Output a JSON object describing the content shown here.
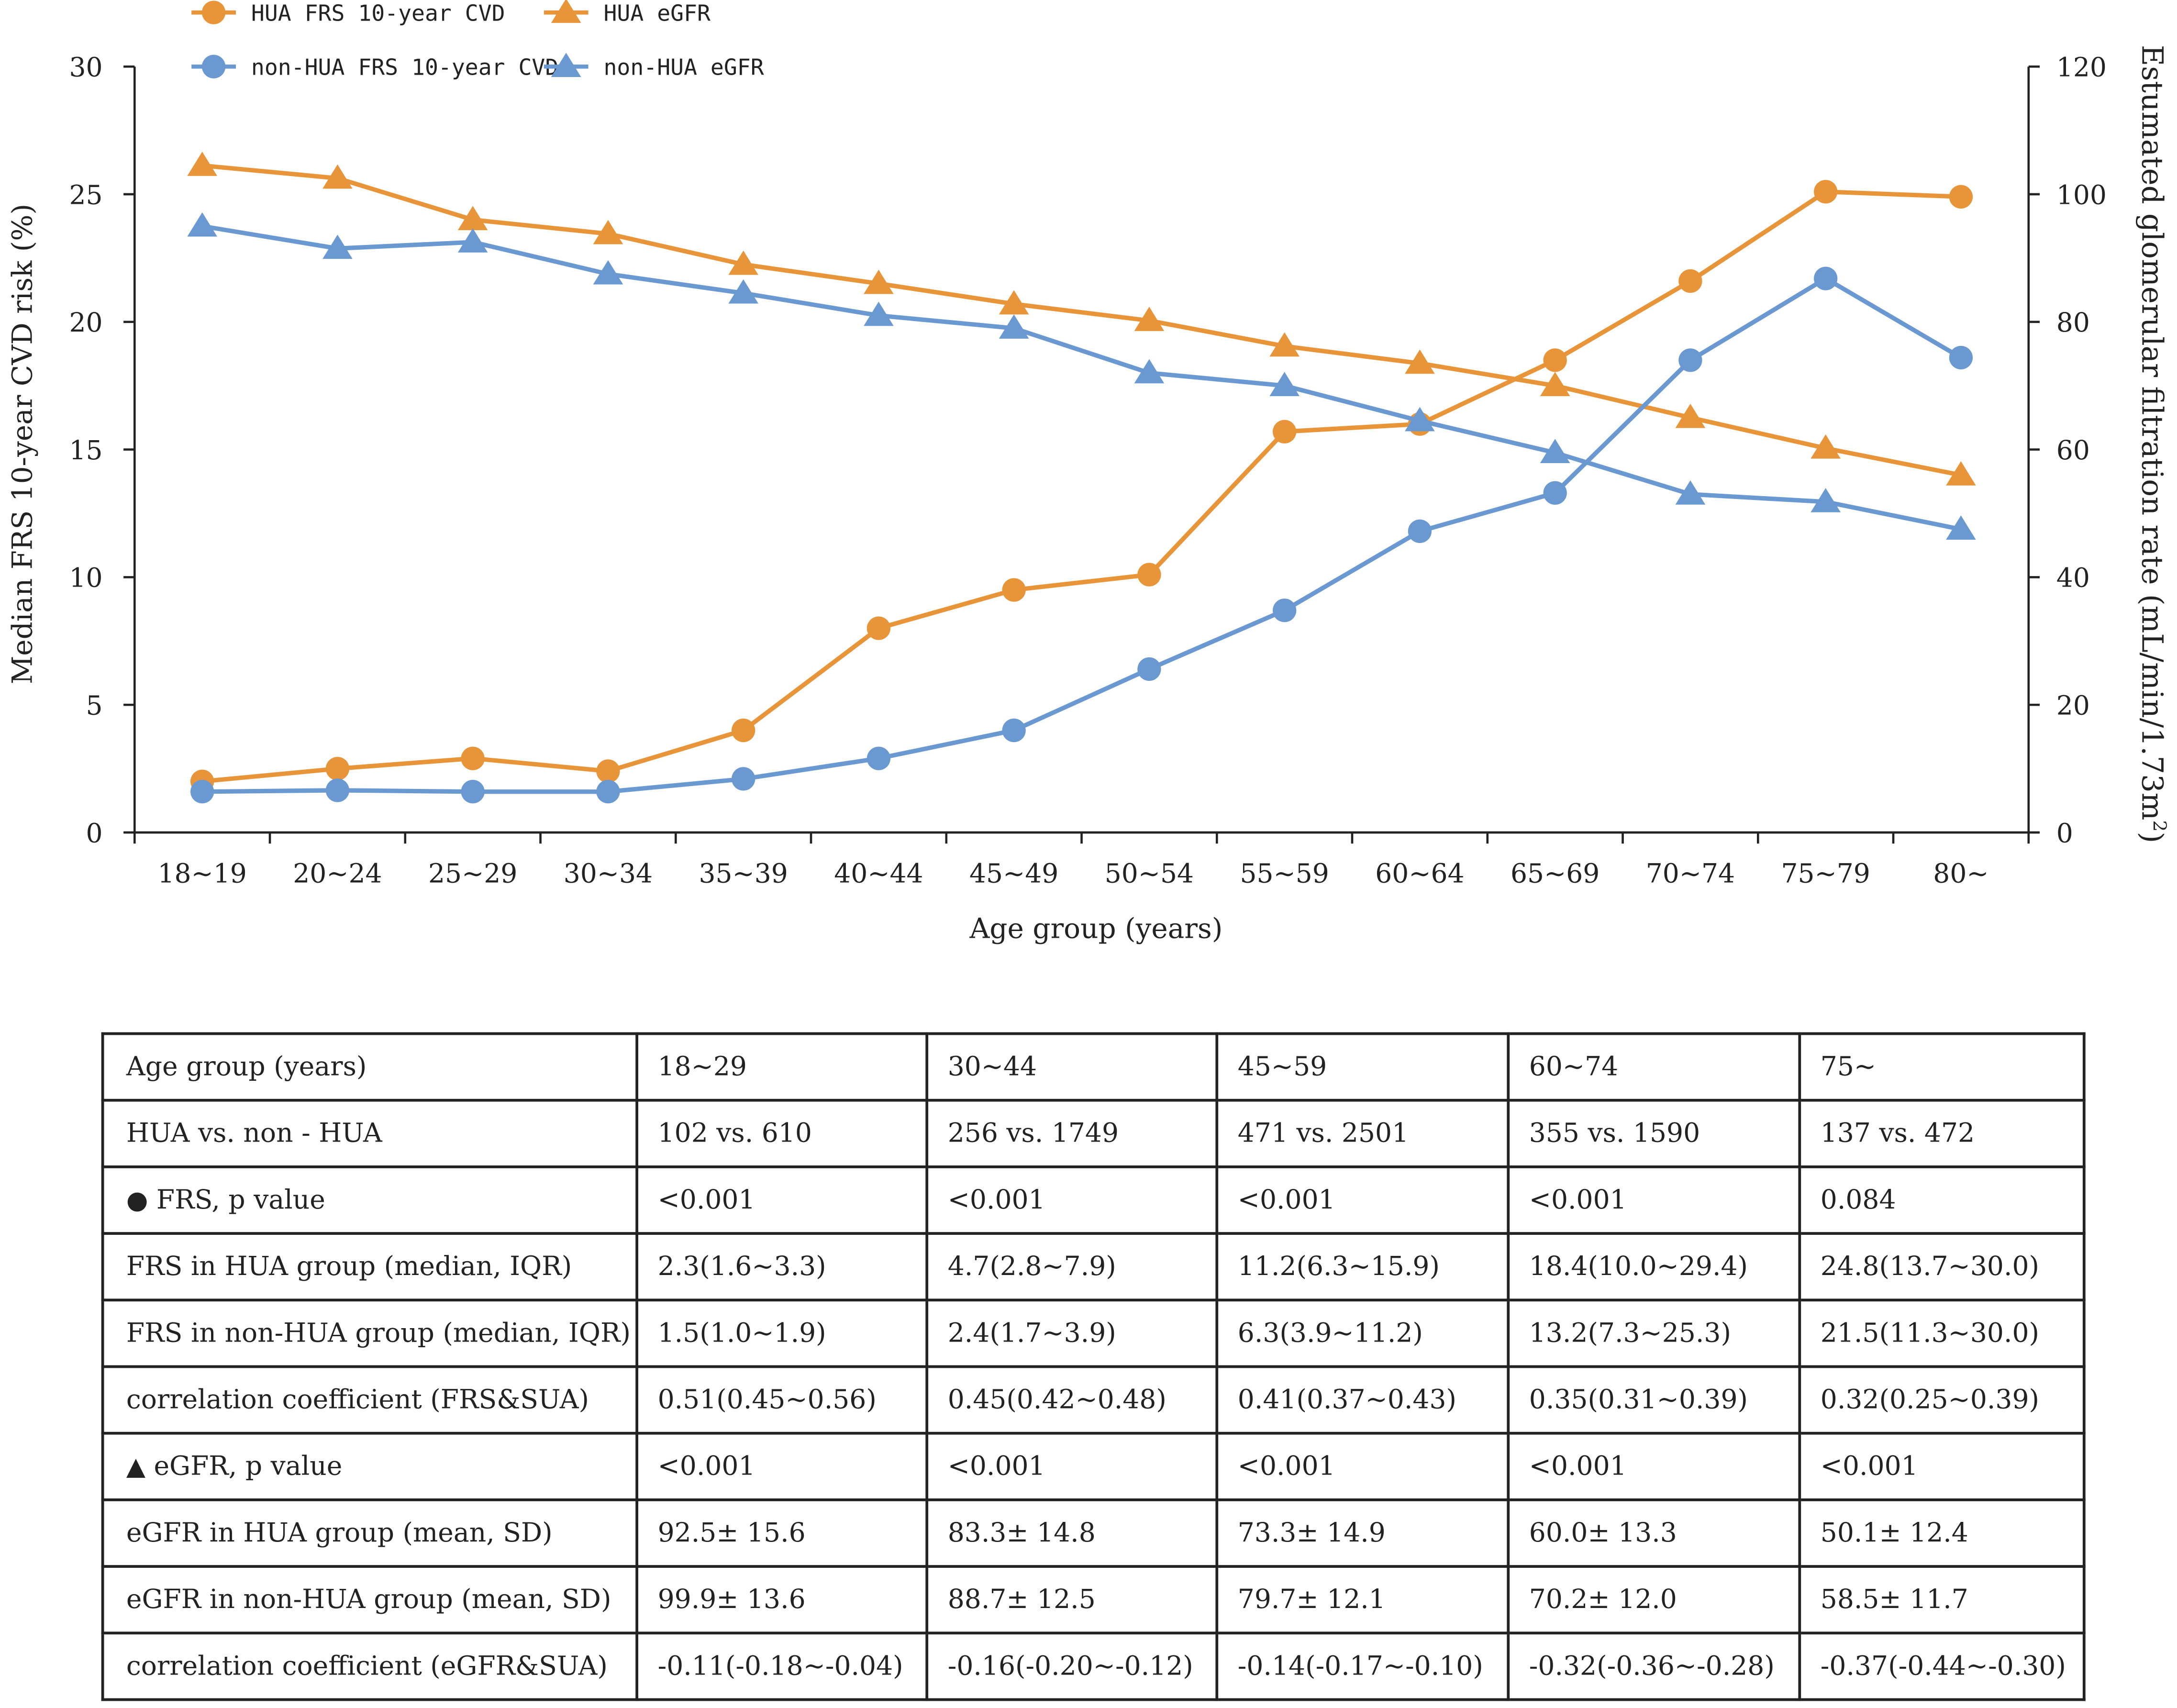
{
  "colors": {
    "hua": "#E8953A",
    "non_hua": "#6A98D0",
    "axis": "#222222"
  },
  "chart_data": {
    "type": "line",
    "categories": [
      "18~19",
      "20~24",
      "25~29",
      "30~34",
      "35~39",
      "40~44",
      "45~49",
      "50~54",
      "55~59",
      "60~64",
      "65~69",
      "70~74",
      "75~79",
      "80~"
    ],
    "xlabel": "Age group (years)",
    "ylabel_left": "Median FRS 10-year CVD risk  (%)",
    "ylabel_right": "Estumated glomerular filtration rate (mL/min/1.73m",
    "ylabel_right_sup": "2",
    "ylim_left": [
      0,
      30
    ],
    "ylim_right": [
      0,
      120
    ],
    "yticks_left": [
      0,
      5,
      10,
      15,
      20,
      25,
      30
    ],
    "yticks_right": [
      0,
      20,
      40,
      60,
      80,
      100,
      120
    ],
    "series": [
      {
        "name": "HUA FRS 10-year CVD",
        "axis": "left",
        "marker": "circle",
        "color": "#E8953A",
        "values": [
          2.0,
          2.5,
          2.9,
          2.4,
          4.0,
          8.0,
          9.5,
          10.1,
          15.7,
          16.0,
          18.5,
          21.6,
          25.1,
          24.9
        ]
      },
      {
        "name": "HUA eGFR",
        "axis": "right",
        "marker": "triangle",
        "color": "#E8953A",
        "values": [
          104.5,
          102.5,
          96.0,
          93.8,
          89.0,
          86.0,
          82.8,
          80.2,
          76.2,
          73.5,
          70.0,
          65.0,
          60.2,
          56.0
        ]
      },
      {
        "name": "non-HUA FRS 10-year CVD",
        "axis": "left",
        "marker": "circle",
        "color": "#6A98D0",
        "values": [
          1.6,
          1.65,
          1.6,
          1.6,
          2.1,
          2.9,
          4.0,
          6.4,
          8.7,
          11.8,
          13.3,
          18.5,
          21.7,
          18.6
        ]
      },
      {
        "name": "non-HUA eGFR",
        "axis": "right",
        "marker": "triangle",
        "color": "#6A98D0",
        "values": [
          95.0,
          91.5,
          92.5,
          87.5,
          84.5,
          81.0,
          79.0,
          72.0,
          70.0,
          64.5,
          59.5,
          53.0,
          51.8,
          47.5
        ]
      }
    ]
  },
  "table": {
    "rows": [
      {
        "label": "Age group (years)",
        "marker": "",
        "cells": [
          "18~29",
          "30~44",
          "45~59",
          "60~74",
          "75~"
        ]
      },
      {
        "label": "HUA vs. non - HUA",
        "marker": "",
        "cells": [
          "102 vs. 610",
          "256 vs. 1749",
          "471 vs. 2501",
          "355 vs. 1590",
          "137 vs. 472"
        ]
      },
      {
        "label": "FRS, p value",
        "marker": "●",
        "cells": [
          "<0.001",
          "<0.001",
          "<0.001",
          "<0.001",
          "0.084"
        ]
      },
      {
        "label": "FRS in HUA group (median, IQR)",
        "marker": "",
        "cells": [
          "2.3(1.6~3.3)",
          "4.7(2.8~7.9)",
          "11.2(6.3~15.9)",
          "18.4(10.0~29.4)",
          "24.8(13.7~30.0)"
        ]
      },
      {
        "label": "FRS in non-HUA group (median, IQR)",
        "marker": "",
        "cells": [
          "1.5(1.0~1.9)",
          "2.4(1.7~3.9)",
          "6.3(3.9~11.2)",
          "13.2(7.3~25.3)",
          "21.5(11.3~30.0)"
        ]
      },
      {
        "label": "correlation coefficient (FRS&SUA)",
        "marker": "",
        "cells": [
          "0.51(0.45~0.56)",
          "0.45(0.42~0.48)",
          "0.41(0.37~0.43)",
          "0.35(0.31~0.39)",
          "0.32(0.25~0.39)"
        ]
      },
      {
        "label": "eGFR, p value",
        "marker": "▲",
        "cells": [
          "<0.001",
          "<0.001",
          "<0.001",
          "<0.001",
          "<0.001"
        ]
      },
      {
        "label": "eGFR in HUA group (mean, SD)",
        "marker": "",
        "cells": [
          "92.5± 15.6",
          "83.3± 14.8",
          "73.3± 14.9",
          "60.0± 13.3",
          "50.1± 12.4"
        ]
      },
      {
        "label": "eGFR in non-HUA group (mean, SD)",
        "marker": "",
        "cells": [
          "99.9± 13.6",
          "88.7± 12.5",
          "79.7± 12.1",
          "70.2± 12.0",
          "58.5± 11.7"
        ]
      },
      {
        "label": "correlation coefficient (eGFR&SUA)",
        "marker": "",
        "cells": [
          "-0.11(-0.18~-0.04)",
          "-0.16(-0.20~-0.12)",
          "-0.14(-0.17~-0.10)",
          "-0.32(-0.36~-0.28)",
          "-0.37(-0.44~-0.30)"
        ]
      }
    ]
  }
}
